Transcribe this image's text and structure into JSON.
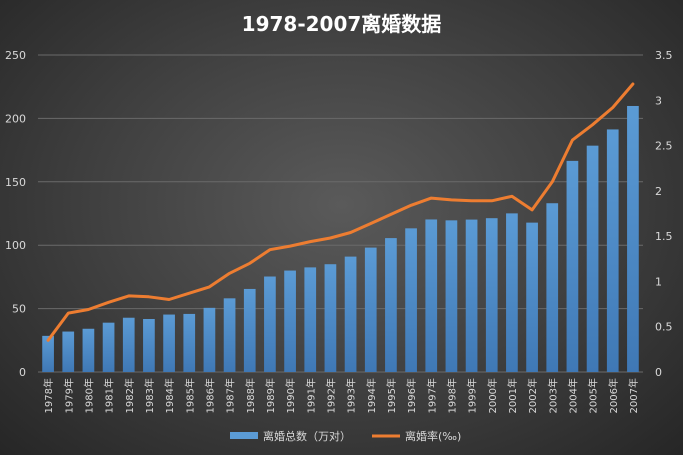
{
  "chart_data": {
    "type": "bar+line",
    "title": "1978-2007离婚数据",
    "categories": [
      "1978年",
      "1979年",
      "1980年",
      "1981年",
      "1982年",
      "1983年",
      "1984年",
      "1985年",
      "1986年",
      "1987年",
      "1988年",
      "1989年",
      "1990年",
      "1991年",
      "1992年",
      "1993年",
      "1994年",
      "1995年",
      "1996年",
      "1997年",
      "1998年",
      "1999年",
      "2000年",
      "2001年",
      "2002年",
      "2003年",
      "2004年",
      "2005年",
      "2006年",
      "2007年"
    ],
    "series": [
      {
        "name": "离婚总数（万对）",
        "type": "bar",
        "axis": "left",
        "color": "#5b9bd5",
        "values": [
          28.5,
          31.9,
          34.1,
          38.9,
          42.8,
          41.8,
          45.3,
          45.8,
          50.6,
          58.1,
          65.5,
          75.3,
          80.0,
          82.5,
          85.0,
          91.0,
          98.1,
          105.6,
          113.3,
          120.3,
          119.6,
          120.2,
          121.3,
          125.1,
          117.8,
          133.1,
          166.5,
          178.5,
          191.3,
          209.8
        ]
      },
      {
        "name": "离婚率(‰)",
        "type": "line",
        "axis": "right",
        "color": "#ed7d31",
        "values": [
          0.35,
          0.65,
          0.69,
          0.77,
          0.84,
          0.83,
          0.8,
          0.87,
          0.94,
          1.09,
          1.2,
          1.35,
          1.39,
          1.44,
          1.48,
          1.54,
          1.64,
          1.74,
          1.84,
          1.92,
          1.9,
          1.89,
          1.89,
          1.94,
          1.79,
          2.1,
          2.56,
          2.73,
          2.92,
          3.18
        ]
      }
    ],
    "y_left": {
      "min": 0,
      "max": 250,
      "ticks": [
        0,
        50,
        100,
        150,
        200,
        250
      ]
    },
    "y_right": {
      "min": 0,
      "max": 3.5,
      "ticks": [
        "0",
        "0.5",
        "1",
        "1.5",
        "2",
        "2.5",
        "3",
        "3.5"
      ]
    },
    "legend_position": "bottom",
    "grid": true
  }
}
